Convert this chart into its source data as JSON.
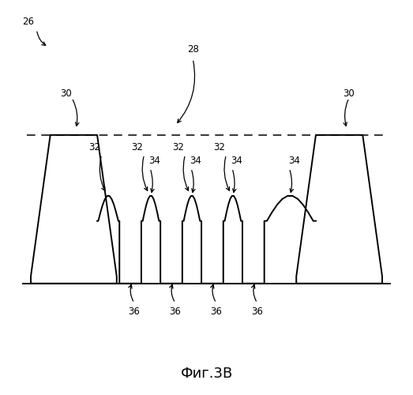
{
  "title": "Фиг.3В",
  "background": "#ffffff",
  "line_color": "#000000",
  "label_26": "26",
  "label_28": "28",
  "label_30": "30",
  "label_32": "32",
  "label_34": "34",
  "label_36": "36",
  "fig_width": 5.23,
  "fig_height": 5.0,
  "dpi": 100
}
